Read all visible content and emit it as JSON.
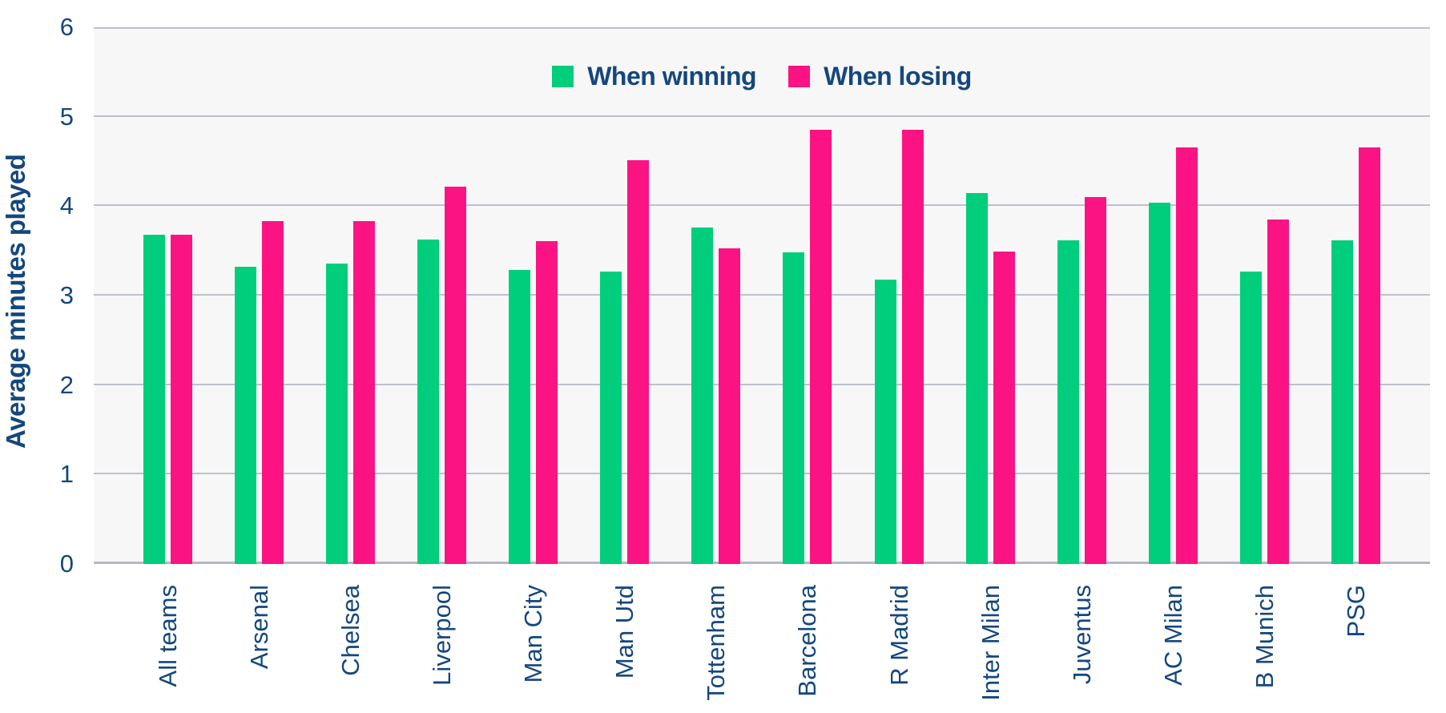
{
  "accent_colors": {
    "winning_green": "#00ce7c",
    "losing_pink": "#fb1384",
    "text_navy": "#14477d",
    "plot_background": "#f7f7f8",
    "gridline_gray": "#bdc1cc"
  },
  "y_axis": {
    "title": "Average minutes played",
    "ticks": [
      0,
      1,
      2,
      3,
      4,
      5,
      6
    ]
  },
  "legend": {
    "winning_label": "When winning",
    "losing_label": "When losing"
  },
  "chart_data": {
    "type": "bar",
    "title": "",
    "xlabel": "",
    "ylabel": "Average minutes played",
    "ylim": [
      0,
      6
    ],
    "yticks": [
      0,
      1,
      2,
      3,
      4,
      5,
      6
    ],
    "grid": true,
    "legend_position": "top-center",
    "categories": [
      "All teams",
      "Arsenal",
      "Chelsea",
      "Liverpool",
      "Man City",
      "Man Utd",
      "Tottenham",
      "Barcelona",
      "R Madrid",
      "Inter Milan",
      "Juventus",
      "AC Milan",
      "B Munich",
      "PSG"
    ],
    "series": [
      {
        "name": "When winning",
        "color": "#00ce7c",
        "values": [
          3.68,
          3.32,
          3.36,
          3.63,
          3.29,
          3.27,
          3.76,
          3.48,
          3.18,
          4.15,
          3.62,
          4.04,
          3.27,
          3.62
        ]
      },
      {
        "name": "When losing",
        "color": "#fb1384",
        "values": [
          3.68,
          3.83,
          3.83,
          4.22,
          3.61,
          4.51,
          3.53,
          4.85,
          4.85,
          3.49,
          4.1,
          4.66,
          3.85,
          4.66
        ]
      }
    ]
  }
}
